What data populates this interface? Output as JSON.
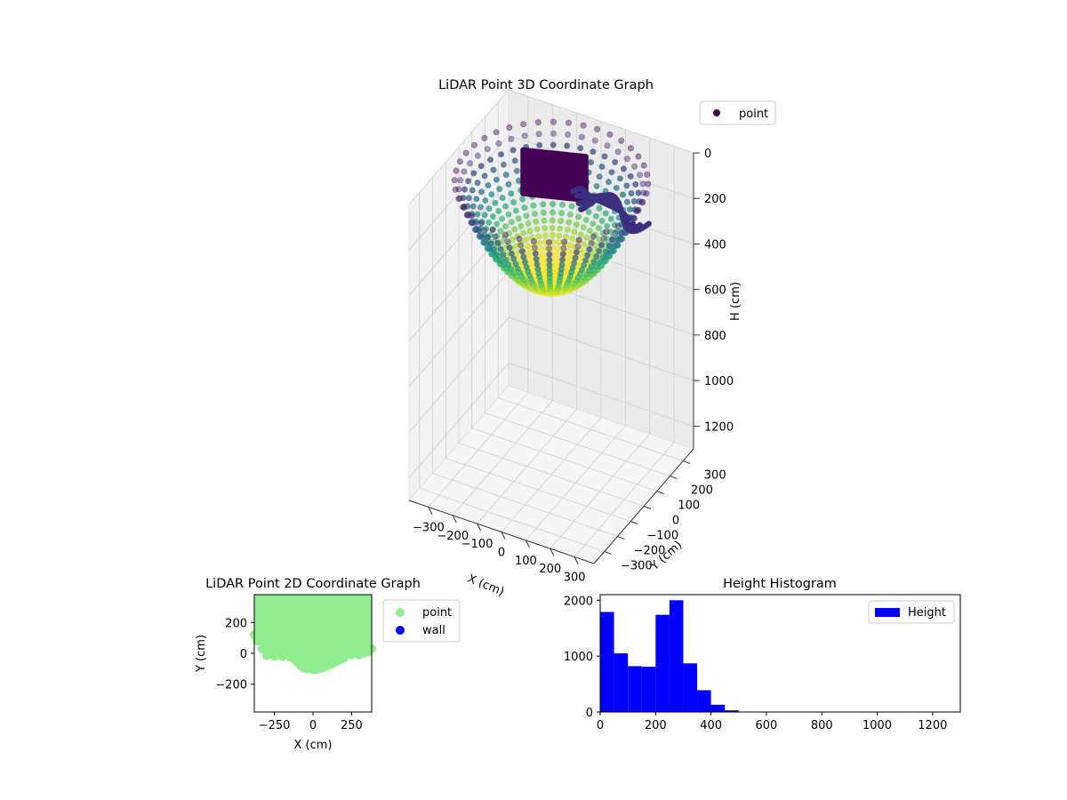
{
  "chart_data": [
    {
      "type": "scatter",
      "projection": "3d",
      "title": "LiDAR Point 3D Coordinate Graph",
      "xlabel": "X (cm)",
      "ylabel": "Y (cm)",
      "zlabel": "H (cm)",
      "xlim": [
        -380,
        380
      ],
      "ylim": [
        -380,
        380
      ],
      "zlim": [
        1300,
        0
      ],
      "xticks": [
        -300,
        -200,
        -100,
        0,
        100,
        200,
        300
      ],
      "yticks": [
        -300,
        -200,
        -100,
        0,
        100,
        200,
        300
      ],
      "zticks": [
        0,
        200,
        400,
        600,
        800,
        1000,
        1200
      ],
      "z_inverted": true,
      "grid": true,
      "colormap": "viridis",
      "legend": {
        "placement": "top-right",
        "entries": [
          {
            "label": "point",
            "color": "#440154"
          }
        ]
      },
      "description_of_points": "Bowl-shaped point cloud of radius approx 350 cm, heights 0 to ~450 cm, colored by height (viridis), with a dense wall cluster near x=-150..50, y=100..350"
    },
    {
      "type": "scatter",
      "title": "LiDAR Point 2D Coordinate Graph",
      "xlabel": "X (cm)",
      "ylabel": "Y (cm)",
      "xlim": [
        -380,
        380
      ],
      "ylim": [
        -380,
        380
      ],
      "xticks": [
        -250,
        0,
        250
      ],
      "yticks": [
        -200,
        0,
        200
      ],
      "legend": {
        "placement": "outside-right",
        "entries": [
          {
            "label": "point",
            "color": "#90ee90"
          },
          {
            "label": "wall",
            "color": "#0000ff"
          }
        ]
      },
      "boundary": {
        "x": [
          -380,
          -360,
          -330,
          -300,
          -250,
          -200,
          -150,
          -120,
          -100,
          -80,
          -60,
          -40,
          -20,
          0,
          20,
          40,
          60,
          80,
          100,
          120,
          140,
          160,
          180,
          200,
          250,
          300,
          330,
          360,
          380
        ],
        "y": [
          120,
          80,
          30,
          -15,
          -20,
          -20,
          -25,
          -40,
          -60,
          -80,
          -95,
          -100,
          -100,
          -105,
          -105,
          -100,
          -95,
          -85,
          -80,
          -70,
          -60,
          -50,
          -40,
          -30,
          -10,
          -10,
          0,
          10,
          30
        ]
      }
    },
    {
      "type": "bar",
      "subtype": "histogram",
      "title": "Height Histogram",
      "xlim": [
        0,
        1300
      ],
      "ylim": [
        0,
        2100
      ],
      "xticks": [
        0,
        200,
        400,
        600,
        800,
        1000,
        1200
      ],
      "yticks": [
        0,
        1000,
        2000
      ],
      "legend": {
        "placement": "top-right",
        "entries": [
          {
            "label": "Height",
            "color": "#0000ff"
          }
        ]
      },
      "bin_width": 50,
      "bin_edges": [
        0,
        50,
        100,
        150,
        200,
        250,
        300,
        350,
        400,
        450,
        500
      ],
      "series": [
        {
          "name": "Height",
          "values": [
            1790,
            1050,
            820,
            810,
            1740,
            2000,
            870,
            390,
            130,
            30
          ]
        }
      ]
    }
  ]
}
